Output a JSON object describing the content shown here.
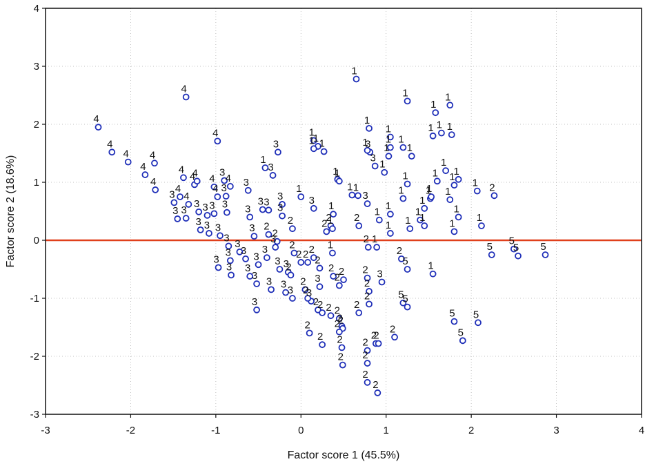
{
  "chart_data": {
    "type": "scatter",
    "xlabel": "Factor score 1  (45.5%)",
    "ylabel": "Factor score 2 (18.6%)",
    "xlim": [
      -3,
      4
    ],
    "ylim": [
      -3,
      4
    ],
    "x_ticks": [
      "-3",
      "-2",
      "-1",
      "0",
      "1",
      "2",
      "3",
      "4"
    ],
    "y_ticks": [
      "-3",
      "-2",
      "-1",
      "0",
      "1",
      "2",
      "3",
      "4"
    ],
    "grid": true,
    "reference_line_y": 0,
    "colors": {
      "marker": "#1f2fb8",
      "reference_line": "#e0401c",
      "frame": "#111111"
    },
    "points": [
      {
        "x": -2.38,
        "y": 1.95,
        "label": "4"
      },
      {
        "x": -2.22,
        "y": 1.52,
        "label": "4"
      },
      {
        "x": -2.03,
        "y": 1.35,
        "label": "4"
      },
      {
        "x": -1.83,
        "y": 1.13,
        "label": "4"
      },
      {
        "x": -1.72,
        "y": 1.33,
        "label": "4"
      },
      {
        "x": -1.71,
        "y": 0.87,
        "label": "4"
      },
      {
        "x": -1.35,
        "y": 2.47,
        "label": "4"
      },
      {
        "x": -1.38,
        "y": 1.08,
        "label": "4"
      },
      {
        "x": -1.42,
        "y": 0.75,
        "label": "4"
      },
      {
        "x": -1.32,
        "y": 0.62,
        "label": "4"
      },
      {
        "x": -1.25,
        "y": 0.96,
        "label": "4"
      },
      {
        "x": -1.22,
        "y": 1.02,
        "label": "4"
      },
      {
        "x": -0.98,
        "y": 1.71,
        "label": "4"
      },
      {
        "x": -1.02,
        "y": 0.92,
        "label": "4"
      },
      {
        "x": -0.98,
        "y": 0.75,
        "label": "4"
      },
      {
        "x": -0.83,
        "y": 0.93,
        "label": "4"
      },
      {
        "x": -1.49,
        "y": 0.65,
        "label": "3"
      },
      {
        "x": -1.45,
        "y": 0.37,
        "label": "3"
      },
      {
        "x": -1.35,
        "y": 0.38,
        "label": "3"
      },
      {
        "x": -1.2,
        "y": 0.49,
        "label": "3"
      },
      {
        "x": -1.1,
        "y": 0.43,
        "label": "3"
      },
      {
        "x": -1.02,
        "y": 0.46,
        "label": "3"
      },
      {
        "x": -0.9,
        "y": 1.03,
        "label": "3"
      },
      {
        "x": -0.88,
        "y": 0.76,
        "label": "3"
      },
      {
        "x": -0.87,
        "y": 0.48,
        "label": "3"
      },
      {
        "x": -0.62,
        "y": 0.86,
        "label": "3"
      },
      {
        "x": -0.27,
        "y": 1.52,
        "label": "3"
      },
      {
        "x": -0.33,
        "y": 1.12,
        "label": "3"
      },
      {
        "x": -0.45,
        "y": 0.53,
        "label": "3"
      },
      {
        "x": -0.38,
        "y": 0.52,
        "label": "3"
      },
      {
        "x": -0.22,
        "y": 0.62,
        "label": "3"
      },
      {
        "x": -0.22,
        "y": 0.42,
        "label": "3"
      },
      {
        "x": -0.55,
        "y": 0.07,
        "label": "3"
      },
      {
        "x": -0.3,
        "y": -0.12,
        "label": "3"
      },
      {
        "x": -0.15,
        "y": -0.55,
        "label": "3"
      },
      {
        "x": 0.15,
        "y": 0.55,
        "label": "3"
      },
      {
        "x": 0.78,
        "y": 0.63,
        "label": "3"
      },
      {
        "x": 0.87,
        "y": 1.28,
        "label": "3"
      },
      {
        "x": -0.97,
        "y": -0.47,
        "label": "3"
      },
      {
        "x": -0.83,
        "y": -0.35,
        "label": "3"
      },
      {
        "x": -0.72,
        "y": -0.2,
        "label": "3"
      },
      {
        "x": -0.6,
        "y": -0.62,
        "label": "3"
      },
      {
        "x": -0.52,
        "y": -0.75,
        "label": "3"
      },
      {
        "x": -0.5,
        "y": -0.42,
        "label": "3"
      },
      {
        "x": -0.35,
        "y": -0.85,
        "label": "3"
      },
      {
        "x": -0.25,
        "y": -0.5,
        "label": "3"
      },
      {
        "x": -0.18,
        "y": -0.9,
        "label": "3"
      },
      {
        "x": -0.1,
        "y": -1.0,
        "label": "3"
      },
      {
        "x": 0.12,
        "y": -1.05,
        "label": "3"
      },
      {
        "x": 0.22,
        "y": -0.8,
        "label": "3"
      },
      {
        "x": -0.52,
        "y": -1.2,
        "label": "3"
      },
      {
        "x": -0.82,
        "y": -0.6,
        "label": "3"
      },
      {
        "x": -1.18,
        "y": 0.18,
        "label": "3"
      },
      {
        "x": -1.08,
        "y": 0.12,
        "label": "3"
      },
      {
        "x": -0.95,
        "y": 0.08,
        "label": "3"
      },
      {
        "x": -0.85,
        "y": -0.1,
        "label": "3"
      },
      {
        "x": -0.65,
        "y": -0.32,
        "label": "3"
      },
      {
        "x": -0.4,
        "y": -0.3,
        "label": "3"
      },
      {
        "x": -0.6,
        "y": 0.4,
        "label": "3"
      },
      {
        "x": 0.81,
        "y": 1.52,
        "label": "3"
      },
      {
        "x": 0.95,
        "y": -0.72,
        "label": "3"
      },
      {
        "x": -0.38,
        "y": 0.1,
        "label": "2"
      },
      {
        "x": -0.28,
        "y": -0.02,
        "label": "2"
      },
      {
        "x": -0.1,
        "y": 0.2,
        "label": "2"
      },
      {
        "x": -0.08,
        "y": -0.22,
        "label": "2"
      },
      {
        "x": 0.0,
        "y": -0.38,
        "label": "2"
      },
      {
        "x": 0.08,
        "y": -0.38,
        "label": "2"
      },
      {
        "x": 0.15,
        "y": -0.3,
        "label": "2"
      },
      {
        "x": 0.22,
        "y": -0.48,
        "label": "2"
      },
      {
        "x": 0.3,
        "y": 0.15,
        "label": "2"
      },
      {
        "x": 0.38,
        "y": -0.62,
        "label": "2"
      },
      {
        "x": 0.45,
        "y": -0.78,
        "label": "2"
      },
      {
        "x": 0.5,
        "y": -0.68,
        "label": "2"
      },
      {
        "x": 0.35,
        "y": 0.25,
        "label": "2"
      },
      {
        "x": -0.12,
        "y": -0.6,
        "label": "2"
      },
      {
        "x": 0.05,
        "y": -0.85,
        "label": "2"
      },
      {
        "x": 0.08,
        "y": -1.0,
        "label": "2"
      },
      {
        "x": 0.2,
        "y": -1.2,
        "label": "2"
      },
      {
        "x": 0.25,
        "y": -1.25,
        "label": "2"
      },
      {
        "x": 0.35,
        "y": -1.3,
        "label": "2"
      },
      {
        "x": 0.45,
        "y": -1.35,
        "label": "2"
      },
      {
        "x": 0.48,
        "y": -1.48,
        "label": "2"
      },
      {
        "x": 0.49,
        "y": -1.52,
        "label": "2"
      },
      {
        "x": 0.48,
        "y": -1.85,
        "label": "2"
      },
      {
        "x": 0.49,
        "y": -2.15,
        "label": "2"
      },
      {
        "x": 0.1,
        "y": -1.6,
        "label": "2"
      },
      {
        "x": 0.25,
        "y": -1.8,
        "label": "2"
      },
      {
        "x": 0.45,
        "y": -1.58,
        "label": "2"
      },
      {
        "x": 0.68,
        "y": 0.25,
        "label": "2"
      },
      {
        "x": 0.68,
        "y": -1.25,
        "label": "2"
      },
      {
        "x": 0.79,
        "y": -0.12,
        "label": "2"
      },
      {
        "x": 0.78,
        "y": -0.65,
        "label": "2"
      },
      {
        "x": 0.8,
        "y": -0.88,
        "label": "2"
      },
      {
        "x": 0.8,
        "y": -1.1,
        "label": "2"
      },
      {
        "x": 0.78,
        "y": -1.9,
        "label": "2"
      },
      {
        "x": 0.78,
        "y": -2.12,
        "label": "2"
      },
      {
        "x": 0.78,
        "y": -2.45,
        "label": "2"
      },
      {
        "x": 0.88,
        "y": -1.78,
        "label": "2"
      },
      {
        "x": 0.91,
        "y": -1.78,
        "label": "2"
      },
      {
        "x": 0.9,
        "y": -2.63,
        "label": "2"
      },
      {
        "x": 1.1,
        "y": -1.67,
        "label": "2"
      },
      {
        "x": 1.18,
        "y": -0.32,
        "label": "2"
      },
      {
        "x": 2.27,
        "y": 0.77,
        "label": "2"
      },
      {
        "x": 0.65,
        "y": 2.78,
        "label": "1"
      },
      {
        "x": 1.25,
        "y": 2.4,
        "label": "1"
      },
      {
        "x": 1.58,
        "y": 2.2,
        "label": "1"
      },
      {
        "x": 1.75,
        "y": 2.33,
        "label": "1"
      },
      {
        "x": 0.8,
        "y": 1.93,
        "label": "1"
      },
      {
        "x": 1.05,
        "y": 1.78,
        "label": "1"
      },
      {
        "x": 0.15,
        "y": 1.72,
        "label": "1"
      },
      {
        "x": 0.2,
        "y": 1.62,
        "label": "1"
      },
      {
        "x": 0.27,
        "y": 1.53,
        "label": "1"
      },
      {
        "x": 0.15,
        "y": 1.58,
        "label": "1"
      },
      {
        "x": 0.0,
        "y": 0.75,
        "label": "1"
      },
      {
        "x": 0.78,
        "y": 1.55,
        "label": "1"
      },
      {
        "x": 0.98,
        "y": 1.17,
        "label": "1"
      },
      {
        "x": 1.03,
        "y": 1.45,
        "label": "1"
      },
      {
        "x": 1.05,
        "y": 1.6,
        "label": "1"
      },
      {
        "x": 1.2,
        "y": 1.6,
        "label": "1"
      },
      {
        "x": 1.3,
        "y": 1.45,
        "label": "1"
      },
      {
        "x": 1.55,
        "y": 1.8,
        "label": "1"
      },
      {
        "x": 1.65,
        "y": 1.85,
        "label": "1"
      },
      {
        "x": 1.77,
        "y": 1.82,
        "label": "1"
      },
      {
        "x": -0.42,
        "y": 1.25,
        "label": "1"
      },
      {
        "x": 0.43,
        "y": 1.05,
        "label": "1"
      },
      {
        "x": 0.45,
        "y": 1.02,
        "label": "1"
      },
      {
        "x": 0.6,
        "y": 0.78,
        "label": "1"
      },
      {
        "x": 0.67,
        "y": 0.77,
        "label": "1"
      },
      {
        "x": 1.25,
        "y": 0.97,
        "label": "1"
      },
      {
        "x": 1.2,
        "y": 0.72,
        "label": "1"
      },
      {
        "x": 1.52,
        "y": 0.72,
        "label": "1"
      },
      {
        "x": 1.53,
        "y": 0.75,
        "label": "1"
      },
      {
        "x": 1.6,
        "y": 1.02,
        "label": "1"
      },
      {
        "x": 1.7,
        "y": 1.2,
        "label": "1"
      },
      {
        "x": 1.8,
        "y": 0.95,
        "label": "1"
      },
      {
        "x": 1.85,
        "y": 1.05,
        "label": "1"
      },
      {
        "x": 1.75,
        "y": 0.7,
        "label": "1"
      },
      {
        "x": 1.8,
        "y": 0.15,
        "label": "1"
      },
      {
        "x": 1.85,
        "y": 0.4,
        "label": "1"
      },
      {
        "x": 1.45,
        "y": 0.55,
        "label": "1"
      },
      {
        "x": 1.4,
        "y": 0.35,
        "label": "1"
      },
      {
        "x": 1.45,
        "y": 0.25,
        "label": "1"
      },
      {
        "x": 1.05,
        "y": 0.45,
        "label": "1"
      },
      {
        "x": 1.05,
        "y": 0.12,
        "label": "1"
      },
      {
        "x": 0.92,
        "y": 0.35,
        "label": "1"
      },
      {
        "x": 0.38,
        "y": 0.45,
        "label": "1"
      },
      {
        "x": 0.37,
        "y": 0.2,
        "label": "1"
      },
      {
        "x": 0.37,
        "y": -0.22,
        "label": "1"
      },
      {
        "x": 0.89,
        "y": -0.12,
        "label": "1"
      },
      {
        "x": 1.55,
        "y": -0.58,
        "label": "1"
      },
      {
        "x": 2.07,
        "y": 0.85,
        "label": "1"
      },
      {
        "x": 2.12,
        "y": 0.25,
        "label": "1"
      },
      {
        "x": 1.28,
        "y": 0.2,
        "label": "1"
      },
      {
        "x": 2.24,
        "y": -0.25,
        "label": "5"
      },
      {
        "x": 2.5,
        "y": -0.15,
        "label": "5"
      },
      {
        "x": 2.55,
        "y": -0.27,
        "label": "5"
      },
      {
        "x": 2.87,
        "y": -0.25,
        "label": "5"
      },
      {
        "x": 1.25,
        "y": -0.5,
        "label": "5"
      },
      {
        "x": 1.2,
        "y": -1.08,
        "label": "5"
      },
      {
        "x": 1.25,
        "y": -1.15,
        "label": "5"
      },
      {
        "x": 1.8,
        "y": -1.4,
        "label": "5"
      },
      {
        "x": 2.08,
        "y": -1.42,
        "label": "5"
      },
      {
        "x": 1.9,
        "y": -1.73,
        "label": "5"
      }
    ]
  }
}
